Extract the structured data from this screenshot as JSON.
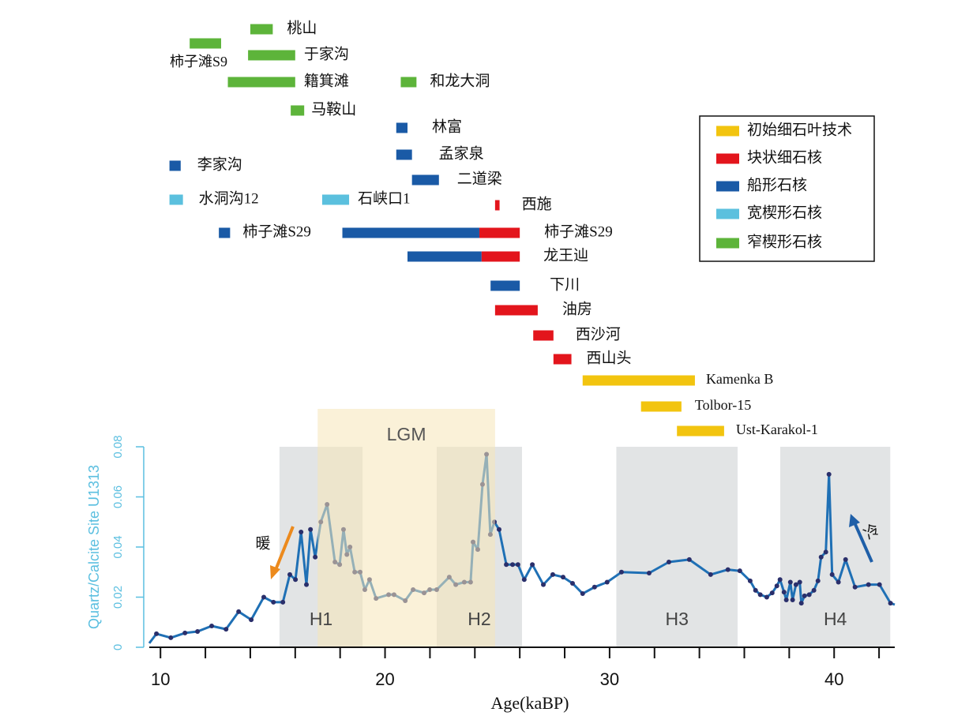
{
  "chart_data": {
    "type": "range-and-line",
    "x_label": "Age(kaBP)",
    "y_label": "Quartz/Calcite Site U1313",
    "xlim": [
      9.5,
      42.7
    ],
    "xticks": [
      10,
      20,
      30,
      40
    ],
    "xminorticks": [
      12,
      14,
      16,
      18,
      22,
      24,
      26,
      28,
      32,
      34,
      36,
      38,
      42
    ],
    "ylim": [
      0,
      0.08
    ],
    "yticks": [
      0,
      0.02,
      0.04,
      0.06,
      0.08
    ],
    "legend": [
      {
        "name": "初始细石叶技术",
        "color": "#f2c40f"
      },
      {
        "name": "块状细石核",
        "color": "#e3151c"
      },
      {
        "name": "船形石核",
        "color": "#1a5aa6"
      },
      {
        "name": "宽楔形石核",
        "color": "#5bc0de"
      },
      {
        "name": "窄楔形石核",
        "color": "#5db43a"
      }
    ],
    "sites": [
      {
        "name": "桃山",
        "segments": [
          {
            "start": 14.0,
            "end": 15.0,
            "category": "窄楔形石核"
          }
        ]
      },
      {
        "name": "柿子滩S9",
        "segments": [
          {
            "start": 11.3,
            "end": 12.7,
            "category": "窄楔形石核"
          }
        ]
      },
      {
        "name": "于家沟",
        "segments": [
          {
            "start": 13.9,
            "end": 16.0,
            "category": "窄楔形石核"
          }
        ]
      },
      {
        "name": "籍箕滩",
        "segments": [
          {
            "start": 13.0,
            "end": 16.0,
            "category": "窄楔形石核"
          }
        ]
      },
      {
        "name": "和龙大洞",
        "segments": [
          {
            "start": 20.7,
            "end": 21.4,
            "category": "窄楔形石核"
          }
        ]
      },
      {
        "name": "马鞍山",
        "segments": [
          {
            "start": 15.8,
            "end": 16.4,
            "category": "窄楔形石核"
          }
        ]
      },
      {
        "name": "林富",
        "segments": [
          {
            "start": 20.5,
            "end": 21.0,
            "category": "船形石核"
          }
        ]
      },
      {
        "name": "孟家泉",
        "segments": [
          {
            "start": 20.5,
            "end": 21.2,
            "category": "船形石核"
          }
        ]
      },
      {
        "name": "李家沟",
        "segments": [
          {
            "start": 10.4,
            "end": 10.9,
            "category": "船形石核"
          }
        ]
      },
      {
        "name": "二道梁",
        "segments": [
          {
            "start": 21.2,
            "end": 22.4,
            "category": "船形石核"
          }
        ]
      },
      {
        "name": "水洞沟12",
        "segments": [
          {
            "start": 10.4,
            "end": 11.0,
            "category": "宽楔形石核"
          }
        ]
      },
      {
        "name": "石峡口1",
        "segments": [
          {
            "start": 17.2,
            "end": 18.4,
            "category": "宽楔形石核"
          }
        ]
      },
      {
        "name": "西施",
        "segments": [
          {
            "start": 24.9,
            "end": 25.1,
            "category": "块状细石核"
          }
        ]
      },
      {
        "name": "柿子滩S29",
        "segments": [
          {
            "start": 12.6,
            "end": 13.1,
            "category": "船形石核"
          }
        ]
      },
      {
        "name": "柿子滩S29",
        "segments": [
          {
            "start": 18.1,
            "end": 24.2,
            "category": "船形石核"
          },
          {
            "start": 24.2,
            "end": 26.0,
            "category": "块状细石核"
          }
        ]
      },
      {
        "name": "龙王辿",
        "segments": [
          {
            "start": 21.0,
            "end": 24.3,
            "category": "船形石核"
          },
          {
            "start": 24.3,
            "end": 26.0,
            "category": "块状细石核"
          }
        ]
      },
      {
        "name": "下川",
        "segments": [
          {
            "start": 24.7,
            "end": 26.0,
            "category": "船形石核"
          }
        ]
      },
      {
        "name": "油房",
        "segments": [
          {
            "start": 24.9,
            "end": 26.8,
            "category": "块状细石核"
          }
        ]
      },
      {
        "name": "西沙河",
        "segments": [
          {
            "start": 26.6,
            "end": 27.5,
            "category": "块状细石核"
          }
        ]
      },
      {
        "name": "西山头",
        "segments": [
          {
            "start": 27.5,
            "end": 28.3,
            "category": "块状细石核"
          }
        ]
      },
      {
        "name": "Kamenka B",
        "segments": [
          {
            "start": 28.8,
            "end": 33.8,
            "category": "初始细石叶技术"
          }
        ]
      },
      {
        "name": "Tolbor-15",
        "segments": [
          {
            "start": 31.4,
            "end": 33.2,
            "category": "初始细石叶技术"
          }
        ]
      },
      {
        "name": "Ust-Karakol-1",
        "segments": [
          {
            "start": 33.0,
            "end": 35.1,
            "category": "初始细石叶技术"
          }
        ]
      }
    ],
    "periods": [
      {
        "label": "H1",
        "start": 15.3,
        "end": 19.0,
        "color": "#e2e4e5"
      },
      {
        "label": "H2",
        "start": 22.3,
        "end": 26.1,
        "color": "#e2e4e5"
      },
      {
        "label": "H3",
        "start": 30.3,
        "end": 35.7,
        "color": "#e2e4e5"
      },
      {
        "label": "H4",
        "start": 37.6,
        "end": 42.5,
        "color": "#e2e4e5"
      },
      {
        "label": "LGM",
        "start": 17.0,
        "end": 24.9,
        "color": "#f6e6b8"
      }
    ],
    "annotations": [
      {
        "text": "暖",
        "color": "#ec8a1d"
      },
      {
        "text": "冷",
        "color": "#1f5fa8"
      }
    ],
    "series": [
      {
        "color": "#1f70b5",
        "marker_color": "#2a2f6b",
        "x": [
          9.5,
          9.82,
          10.46,
          11.09,
          11.65,
          12.28,
          12.92,
          13.48,
          14.04,
          14.6,
          15.03,
          15.45,
          15.76,
          16.01,
          16.26,
          16.5,
          16.68,
          16.89,
          17.14,
          17.42,
          17.77,
          17.98,
          18.15,
          18.3,
          18.44,
          18.65,
          18.89,
          19.1,
          19.31,
          19.6,
          20.16,
          20.4,
          20.9,
          21.25,
          21.74,
          21.99,
          22.3,
          22.86,
          23.15,
          23.53,
          23.81,
          23.92,
          24.13,
          24.34,
          24.52,
          24.69,
          24.87,
          25.08,
          25.4,
          25.68,
          25.92,
          26.2,
          26.56,
          27.05,
          27.47,
          27.93,
          28.35,
          28.8,
          29.33,
          29.89,
          30.53,
          31.76,
          32.64,
          33.55,
          34.5,
          35.27,
          35.8,
          36.26,
          36.5,
          36.71,
          37.0,
          37.24,
          37.45,
          37.59,
          37.77,
          37.87,
          38.05,
          38.15,
          38.3,
          38.47,
          38.54,
          38.68,
          38.89,
          39.1,
          39.28,
          39.42,
          39.63,
          39.77,
          39.91,
          40.19,
          40.51,
          40.93,
          41.53,
          42.02,
          42.51,
          42.7
        ],
        "values": [
          0.0016,
          0.0054,
          0.0038,
          0.0057,
          0.0063,
          0.0085,
          0.0072,
          0.0142,
          0.011,
          0.02,
          0.018,
          0.018,
          0.029,
          0.027,
          0.046,
          0.025,
          0.047,
          0.036,
          0.05,
          0.057,
          0.034,
          0.033,
          0.047,
          0.037,
          0.04,
          0.03,
          0.03,
          0.023,
          0.027,
          0.0195,
          0.021,
          0.021,
          0.0186,
          0.023,
          0.0217,
          0.023,
          0.023,
          0.028,
          0.025,
          0.026,
          0.026,
          0.042,
          0.039,
          0.065,
          0.077,
          0.045,
          0.05,
          0.047,
          0.033,
          0.033,
          0.033,
          0.027,
          0.033,
          0.025,
          0.029,
          0.028,
          0.0255,
          0.0214,
          0.024,
          0.026,
          0.03,
          0.0296,
          0.034,
          0.035,
          0.029,
          0.031,
          0.0305,
          0.0265,
          0.0227,
          0.021,
          0.02,
          0.0217,
          0.0245,
          0.027,
          0.022,
          0.0189,
          0.026,
          0.0189,
          0.025,
          0.026,
          0.0176,
          0.0205,
          0.021,
          0.0227,
          0.0265,
          0.036,
          0.038,
          0.069,
          0.029,
          0.026,
          0.035,
          0.024,
          0.025,
          0.025,
          0.0176,
          0.017
        ]
      }
    ]
  }
}
